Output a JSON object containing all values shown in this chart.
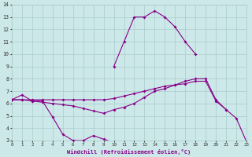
{
  "xlabel": "Windchill (Refroidissement éolien,°C)",
  "bg_color": "#cce8e8",
  "grid_color": "#aacccc",
  "line_color": "#880088",
  "xlim": [
    0,
    23
  ],
  "ylim": [
    3,
    14
  ],
  "xticks": [
    0,
    1,
    2,
    3,
    4,
    5,
    6,
    7,
    8,
    9,
    10,
    11,
    12,
    13,
    14,
    15,
    16,
    17,
    18,
    19,
    20,
    21,
    22,
    23
  ],
  "yticks": [
    3,
    4,
    5,
    6,
    7,
    8,
    9,
    10,
    11,
    12,
    13,
    14
  ],
  "line1_x": [
    0,
    1,
    2,
    3,
    4,
    5,
    6,
    7,
    8,
    9,
    10
  ],
  "line1_y": [
    6.3,
    6.7,
    6.2,
    6.2,
    4.9,
    3.5,
    3.0,
    3.0,
    3.4,
    3.1,
    2.85
  ],
  "line2_x": [
    0,
    1,
    2,
    3,
    4,
    5,
    6,
    7,
    8,
    9,
    10,
    11,
    12,
    13,
    14,
    15,
    16,
    17,
    18,
    19,
    20,
    21
  ],
  "line2_y": [
    6.3,
    6.3,
    6.3,
    6.3,
    6.3,
    6.3,
    6.3,
    6.3,
    6.3,
    6.3,
    6.4,
    6.6,
    6.8,
    7.0,
    7.2,
    7.4,
    7.5,
    7.6,
    7.8,
    7.8,
    6.2,
    5.5
  ],
  "line3_x": [
    0,
    1,
    2,
    3,
    4,
    5,
    6,
    7,
    8,
    9,
    10,
    11,
    12,
    13,
    14,
    15,
    16,
    17,
    18,
    19,
    20,
    21,
    22,
    23
  ],
  "line3_y": [
    6.3,
    6.3,
    6.2,
    6.1,
    6.0,
    5.9,
    5.8,
    5.6,
    5.4,
    5.2,
    5.5,
    5.7,
    6.0,
    6.5,
    7.0,
    7.2,
    7.5,
    7.8,
    8.0,
    8.0,
    6.3,
    5.5,
    4.8,
    2.9
  ],
  "line4_x": [
    10,
    11,
    12,
    13,
    14,
    15,
    16,
    17,
    18
  ],
  "line4_y": [
    9.0,
    11.0,
    13.0,
    13.0,
    13.5,
    13.0,
    12.2,
    11.0,
    10.0
  ]
}
